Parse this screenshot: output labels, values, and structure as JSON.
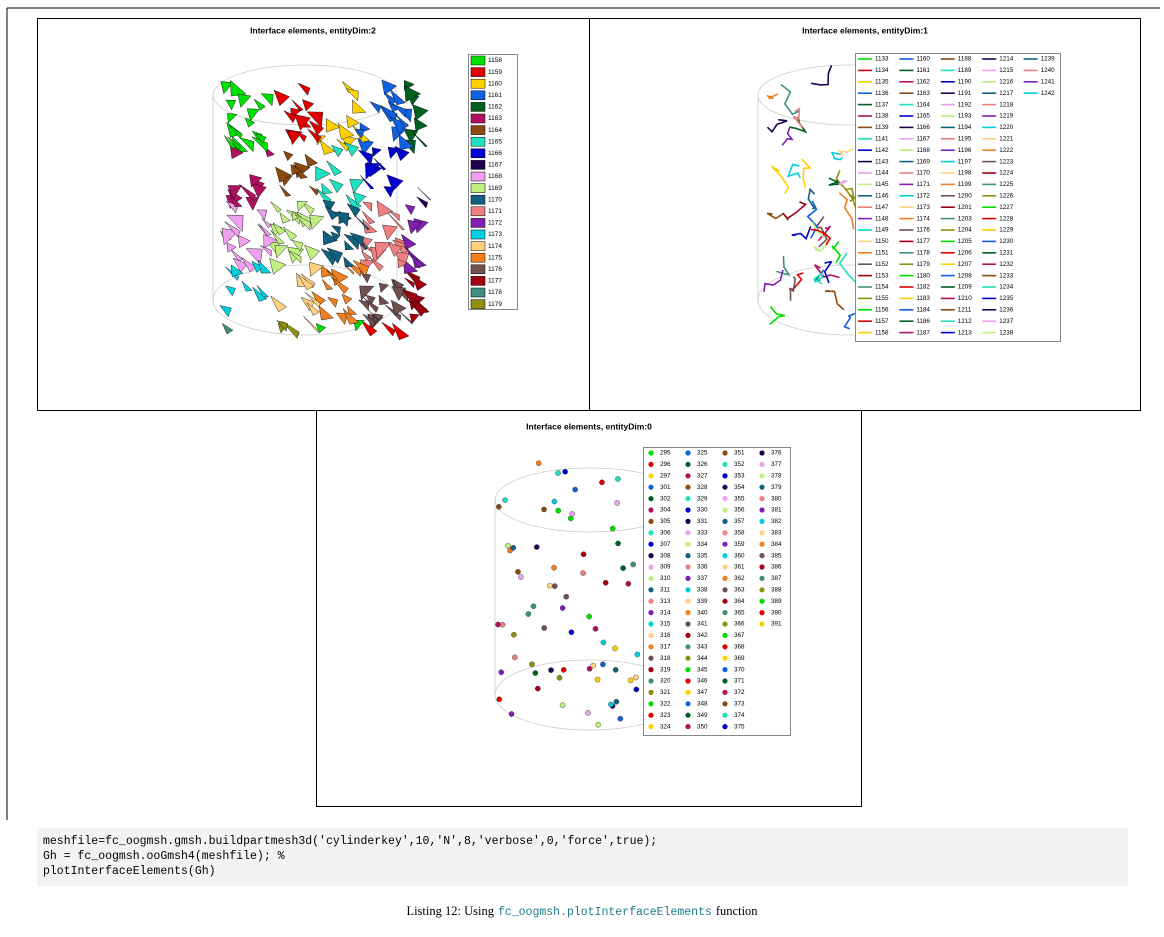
{
  "palette": [
    "#00e000",
    "#e00000",
    "#ffd000",
    "#1060e0",
    "#006020",
    "#b01060",
    "#8b4a10",
    "#20e0c0",
    "#0000d0",
    "#200050",
    "#f0a0f0",
    "#c0f080",
    "#106080",
    "#f08080",
    "#8020b0",
    "#00d0e0",
    "#ffd080",
    "#f08020",
    "#705050",
    "#a00010",
    "#409080",
    "#909010"
  ],
  "figures": [
    {
      "title": "Interface elements, entityDim:2",
      "legend": [
        "1158",
        "1159",
        "1160",
        "1161",
        "1162",
        "1163",
        "1164",
        "1165",
        "1166",
        "1167",
        "1168",
        "1169",
        "1170",
        "1171",
        "1172",
        "1173",
        "1174",
        "1175",
        "1176",
        "1177",
        "1178",
        "1179"
      ]
    },
    {
      "title": "Interface elements, entityDim:1",
      "legend": [
        "1133",
        "1134",
        "1135",
        "1136",
        "1137",
        "1138",
        "1139",
        "1141",
        "1142",
        "1143",
        "1144",
        "1145",
        "1146",
        "1147",
        "1148",
        "1149",
        "1150",
        "1151",
        "1152",
        "1153",
        "1154",
        "1155",
        "1156",
        "1157",
        "1158",
        "1160",
        "1161",
        "1162",
        "1163",
        "1164",
        "1165",
        "1166",
        "1167",
        "1168",
        "1169",
        "1170",
        "1171",
        "1172",
        "1173",
        "1174",
        "1176",
        "1177",
        "1178",
        "1179",
        "1180",
        "1182",
        "1183",
        "1184",
        "1186",
        "1187",
        "1188",
        "1189",
        "1190",
        "1191",
        "1192",
        "1193",
        "1194",
        "1195",
        "1196",
        "1197",
        "1198",
        "1199",
        "1200",
        "1201",
        "1203",
        "1204",
        "1205",
        "1206",
        "1207",
        "1208",
        "1209",
        "1210",
        "1211",
        "1212",
        "1213",
        "1214",
        "1215",
        "1216",
        "1217",
        "1218",
        "1219",
        "1220",
        "1221",
        "1222",
        "1223",
        "1224",
        "1225",
        "1226",
        "1227",
        "1228",
        "1229",
        "1230",
        "1231",
        "1232",
        "1233",
        "1234",
        "1235",
        "1236",
        "1237",
        "1238",
        "1239",
        "1240",
        "1241",
        "1242"
      ]
    },
    {
      "title": "Interface elements, entityDim:0",
      "legend": [
        "295",
        "296",
        "297",
        "301",
        "302",
        "304",
        "305",
        "306",
        "307",
        "308",
        "309",
        "310",
        "311",
        "313",
        "314",
        "315",
        "316",
        "317",
        "318",
        "319",
        "320",
        "321",
        "322",
        "323",
        "324",
        "325",
        "326",
        "327",
        "328",
        "329",
        "330",
        "331",
        "333",
        "334",
        "335",
        "336",
        "337",
        "338",
        "339",
        "340",
        "341",
        "342",
        "343",
        "344",
        "345",
        "346",
        "347",
        "348",
        "349",
        "350",
        "351",
        "352",
        "353",
        "354",
        "355",
        "356",
        "357",
        "358",
        "359",
        "360",
        "361",
        "362",
        "363",
        "364",
        "365",
        "366",
        "367",
        "368",
        "369",
        "370",
        "371",
        "372",
        "373",
        "374",
        "375",
        "376",
        "377",
        "378",
        "379",
        "380",
        "381",
        "382",
        "383",
        "384",
        "385",
        "386",
        "387",
        "388",
        "389",
        "390",
        "391"
      ]
    }
  ],
  "code": [
    "meshfile=fc_oogmsh.gmsh.buildpartmesh3d('cylinderkey',10,'N',8,'verbose',0,'force',true);",
    "Gh = fc_oogmsh.ooGmsh4(meshfile); %",
    "plotInterfaceElements(Gh)"
  ],
  "caption": {
    "prefix": "Listing 12: Using",
    "code": "fc_oogmsh.plotInterfaceElements",
    "suffix": "function"
  }
}
